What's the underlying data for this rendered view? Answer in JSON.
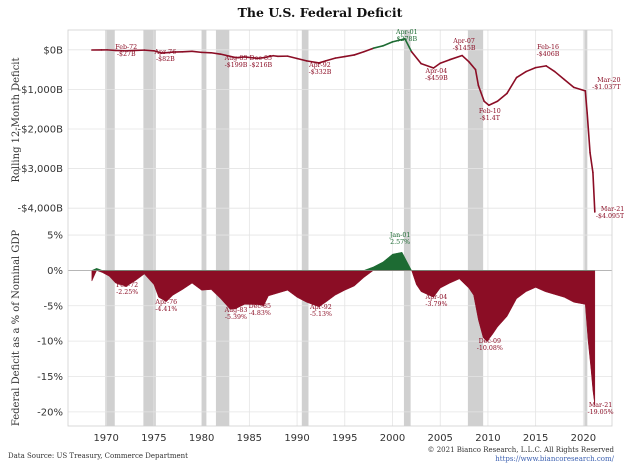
{
  "chart_data": [
    {
      "type": "line",
      "title": "The U.S. Federal Deficit",
      "ylabel": "Rolling 12-Month Deficit",
      "xlim": [
        1966,
        2023
      ],
      "ylim": [
        -4400,
        500
      ],
      "yticks": [
        {
          "value": 0,
          "label": "$0B"
        },
        {
          "value": -1000,
          "label": "-$1,000B"
        },
        {
          "value": -2000,
          "label": "-$2,000B"
        },
        {
          "value": -3000,
          "label": "-$3,000B"
        },
        {
          "value": -4000,
          "label": "-$4,000B"
        }
      ],
      "series": [
        {
          "x": [
            1968.5,
            1969.5,
            1970.1,
            1971,
            1972.1,
            1973,
            1974,
            1975,
            1975.8,
            1976.5,
            1977,
            1978,
            1979,
            1980,
            1981,
            1982,
            1983.6,
            1984.5,
            1985.9,
            1986.5,
            1987.5,
            1988,
            1989,
            1990,
            1991,
            1992.3,
            1993,
            1994,
            1995,
            1996,
            1997,
            1998,
            1999,
            2000,
            2001.3,
            2002,
            2003,
            2004.3,
            2005,
            2006,
            2007.3,
            2008,
            2008.7,
            2009,
            2009.6,
            2010.1,
            2011,
            2012,
            2013,
            2014,
            2015,
            2016.1,
            2017,
            2018,
            2019,
            2020.2,
            2020.4,
            2020.7,
            2021,
            2021.2
          ],
          "y": [
            -5,
            -3,
            -2,
            -15,
            -27,
            -16,
            -8,
            -25,
            -82,
            -70,
            -58,
            -50,
            -38,
            -65,
            -75,
            -110,
            -199,
            -180,
            -216,
            -200,
            -150,
            -165,
            -160,
            -220,
            -280,
            -332,
            -280,
            -210,
            -170,
            -130,
            -50,
            40,
            100,
            200,
            278,
            -50,
            -350,
            -459,
            -340,
            -250,
            -145,
            -300,
            -500,
            -900,
            -1300,
            -1400,
            -1300,
            -1100,
            -700,
            -550,
            -450,
            -406,
            -550,
            -750,
            -950,
            -1037,
            -1600,
            -2600,
            -3100,
            -4095
          ]
        }
      ],
      "annotations": [
        {
          "label": "Feb-72",
          "value": "-$27B"
        },
        {
          "label": "Apr-76",
          "value": "-$82B"
        },
        {
          "label": "Aug-83",
          "value": "-$199B"
        },
        {
          "label": "Dec-85",
          "value": "-$216B"
        },
        {
          "label": "Apr-92",
          "value": "-$332B"
        },
        {
          "label": "Apr-01",
          "value": "$278B"
        },
        {
          "label": "Apr-04",
          "value": "-$459B"
        },
        {
          "label": "Apr-07",
          "value": "-$145B"
        },
        {
          "label": "Feb-10",
          "value": "-$1.4T"
        },
        {
          "label": "Feb-16",
          "value": "-$406B"
        },
        {
          "label": "Mar-20",
          "value": "-$1.037T"
        },
        {
          "label": "Mar-21",
          "value": "-$4.095T"
        }
      ]
    },
    {
      "type": "area",
      "ylabel": "Federal Deficit as a % of Nominal GDP",
      "xlim": [
        1966,
        2023
      ],
      "ylim": [
        -22,
        6
      ],
      "yticks": [
        {
          "value": 5,
          "label": "5%"
        },
        {
          "value": 0,
          "label": "0%"
        },
        {
          "value": -5,
          "label": "-5%"
        },
        {
          "value": -10,
          "label": "-10%"
        },
        {
          "value": -15,
          "label": "-15%"
        },
        {
          "value": -20,
          "label": "-20%"
        }
      ],
      "xticks": [
        1970,
        1975,
        1980,
        1985,
        1990,
        1995,
        2000,
        2005,
        2010,
        2015,
        2020
      ],
      "series": [
        {
          "x": [
            1968.5,
            1969,
            1969.6,
            1970.3,
            1971,
            1972.1,
            1973,
            1974,
            1975,
            1975.5,
            1976.3,
            1977,
            1978,
            1979,
            1980,
            1981,
            1982,
            1983,
            1983.6,
            1984.5,
            1985.9,
            1986.5,
            1987,
            1988,
            1989,
            1990,
            1991,
            1992.3,
            1993,
            1994,
            1995,
            1996,
            1997,
            1998,
            1999,
            2000,
            2001,
            2002,
            2002.5,
            2003,
            2004.3,
            2005,
            2006,
            2007,
            2008,
            2008.5,
            2009,
            2009.5,
            2009.9,
            2010.5,
            2011,
            2012,
            2013,
            2014,
            2015,
            2016,
            2017,
            2018,
            2019,
            2020.2,
            2020.5,
            2020.8,
            2021,
            2021.2
          ],
          "y": [
            -1.5,
            0.3,
            -0.3,
            -0.8,
            -1.8,
            -2.25,
            -1.5,
            -0.5,
            -2,
            -3.8,
            -4.41,
            -3.5,
            -2.7,
            -1.8,
            -2.8,
            -2.7,
            -4,
            -5.5,
            -5.39,
            -4.8,
            -4.83,
            -5,
            -3.6,
            -3.2,
            -2.8,
            -3.8,
            -4.5,
            -5.13,
            -4.5,
            -3.5,
            -2.8,
            -2.2,
            -1,
            0.5,
            1.2,
            2.3,
            2.57,
            0,
            -2,
            -3,
            -3.79,
            -2.5,
            -1.8,
            -1.2,
            -2.5,
            -3.5,
            -7,
            -9.5,
            -10.08,
            -9,
            -8,
            -6.5,
            -4,
            -3,
            -2.4,
            -3,
            -3.4,
            -3.8,
            -4.5,
            -4.8,
            -10,
            -14,
            -17,
            -19.05
          ]
        }
      ],
      "annotations": [
        {
          "label": "Feb-72",
          "value": "-2.25%"
        },
        {
          "label": "Apr-76",
          "value": "-4.41%"
        },
        {
          "label": "Aug-83",
          "value": "-5.39%"
        },
        {
          "label": "Dec-85",
          "value": "-4.83%"
        },
        {
          "label": "Apr-92",
          "value": "-5.13%"
        },
        {
          "label": "Jan-01",
          "value": "2.57%"
        },
        {
          "label": "Apr-04",
          "value": "-3.79%"
        },
        {
          "label": "Dec-09",
          "value": "-10.08%"
        },
        {
          "label": "Mar-21",
          "value": "-19.05%"
        }
      ]
    }
  ],
  "recessions": [
    [
      1969.9,
      1970.9
    ],
    [
      1973.9,
      1975.2
    ],
    [
      1980.0,
      1980.5
    ],
    [
      1981.5,
      1982.9
    ],
    [
      1990.5,
      1991.2
    ],
    [
      2001.2,
      2001.9
    ],
    [
      2007.9,
      2009.5
    ],
    [
      2020.1,
      2020.4
    ]
  ],
  "footer": {
    "source": "Data Source: US Treasury, Commerce Department",
    "copyright": "© 2021 Bianco Research, L.L.C. All Rights Reserved",
    "url": "https://www.biancoresearch.com/"
  },
  "colors": {
    "deficit": "#8b0d25",
    "surplus": "#1d6b33",
    "recession": "#d0d0d0",
    "grid": "#e4e4e4"
  }
}
